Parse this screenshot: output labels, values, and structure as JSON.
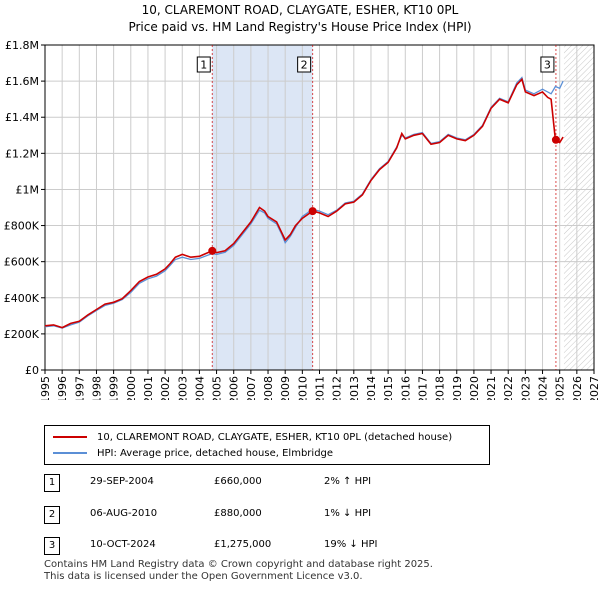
{
  "title": {
    "line1": "10, CLAREMONT ROAD, CLAYGATE, ESHER, KT10 0PL",
    "line2": "Price paid vs. HM Land Registry's House Price Index (HPI)"
  },
  "colors": {
    "property_line": "#cc0000",
    "hpi_line": "#5b8fd6",
    "shade": "#dce6f5",
    "grid": "#cccccc",
    "marker_border": "#cc0000"
  },
  "chart_data": {
    "type": "line",
    "x_range": [
      1995,
      2027
    ],
    "ylim": [
      0,
      1800000
    ],
    "y_ticks": [
      {
        "value": 0,
        "label": "£0"
      },
      {
        "value": 200000,
        "label": "£200K"
      },
      {
        "value": 400000,
        "label": "£400K"
      },
      {
        "value": 600000,
        "label": "£600K"
      },
      {
        "value": 800000,
        "label": "£800K"
      },
      {
        "value": 1000000,
        "label": "£1M"
      },
      {
        "value": 1200000,
        "label": "£1.2M"
      },
      {
        "value": 1400000,
        "label": "£1.4M"
      },
      {
        "value": 1600000,
        "label": "£1.6M"
      },
      {
        "value": 1800000,
        "label": "£1.8M"
      }
    ],
    "x_ticks": [
      "1995",
      "1996",
      "1997",
      "1998",
      "1999",
      "2000",
      "2001",
      "2002",
      "2003",
      "2004",
      "2005",
      "2006",
      "2007",
      "2008",
      "2009",
      "2010",
      "2011",
      "2012",
      "2013",
      "2014",
      "2015",
      "2016",
      "2017",
      "2018",
      "2019",
      "2020",
      "2021",
      "2022",
      "2023",
      "2024",
      "2025",
      "2026",
      "2027"
    ],
    "shaded_period": [
      2004.75,
      2010.6
    ],
    "future_hatch_start": 2025.25,
    "series": [
      {
        "name": "10, CLAREMONT ROAD, CLAYGATE, ESHER, KT10 0PL (detached house)",
        "points": [
          [
            1995,
            245000
          ],
          [
            1995.5,
            250000
          ],
          [
            1996,
            235000
          ],
          [
            1996.5,
            258000
          ],
          [
            1997,
            270000
          ],
          [
            1997.5,
            305000
          ],
          [
            1998,
            335000
          ],
          [
            1998.5,
            365000
          ],
          [
            1999,
            375000
          ],
          [
            1999.5,
            395000
          ],
          [
            2000,
            440000
          ],
          [
            2000.5,
            490000
          ],
          [
            2001,
            515000
          ],
          [
            2001.5,
            530000
          ],
          [
            2002,
            560000
          ],
          [
            2002.3,
            590000
          ],
          [
            2002.6,
            625000
          ],
          [
            2003,
            640000
          ],
          [
            2003.5,
            625000
          ],
          [
            2004,
            630000
          ],
          [
            2004.75,
            660000
          ],
          [
            2005,
            650000
          ],
          [
            2005.5,
            660000
          ],
          [
            2006,
            700000
          ],
          [
            2006.5,
            760000
          ],
          [
            2007,
            820000
          ],
          [
            2007.5,
            900000
          ],
          [
            2007.8,
            880000
          ],
          [
            2008,
            850000
          ],
          [
            2008.5,
            820000
          ],
          [
            2008.8,
            760000
          ],
          [
            2009,
            720000
          ],
          [
            2009.3,
            750000
          ],
          [
            2009.6,
            800000
          ],
          [
            2010,
            840000
          ],
          [
            2010.6,
            880000
          ],
          [
            2011,
            870000
          ],
          [
            2011.5,
            850000
          ],
          [
            2012,
            880000
          ],
          [
            2012.5,
            920000
          ],
          [
            2013,
            930000
          ],
          [
            2013.5,
            970000
          ],
          [
            2014,
            1050000
          ],
          [
            2014.5,
            1110000
          ],
          [
            2015,
            1150000
          ],
          [
            2015.5,
            1230000
          ],
          [
            2015.8,
            1310000
          ],
          [
            2016,
            1280000
          ],
          [
            2016.5,
            1300000
          ],
          [
            2017,
            1310000
          ],
          [
            2017.5,
            1250000
          ],
          [
            2018,
            1260000
          ],
          [
            2018.5,
            1300000
          ],
          [
            2019,
            1280000
          ],
          [
            2019.5,
            1270000
          ],
          [
            2020,
            1300000
          ],
          [
            2020.5,
            1350000
          ],
          [
            2021,
            1450000
          ],
          [
            2021.5,
            1500000
          ],
          [
            2022,
            1480000
          ],
          [
            2022.5,
            1580000
          ],
          [
            2022.8,
            1610000
          ],
          [
            2023,
            1540000
          ],
          [
            2023.5,
            1520000
          ],
          [
            2024,
            1540000
          ],
          [
            2024.3,
            1510000
          ],
          [
            2024.5,
            1500000
          ],
          [
            2024.75,
            1275000
          ],
          [
            2025,
            1260000
          ],
          [
            2025.2,
            1290000
          ]
        ]
      },
      {
        "name": "HPI: Average price, detached house, Elmbridge",
        "points": [
          [
            1995,
            240000
          ],
          [
            1995.5,
            245000
          ],
          [
            1996,
            232000
          ],
          [
            1996.5,
            250000
          ],
          [
            1997,
            265000
          ],
          [
            1997.5,
            300000
          ],
          [
            1998,
            330000
          ],
          [
            1998.5,
            358000
          ],
          [
            1999,
            370000
          ],
          [
            1999.5,
            390000
          ],
          [
            2000,
            430000
          ],
          [
            2000.5,
            480000
          ],
          [
            2001,
            505000
          ],
          [
            2001.5,
            520000
          ],
          [
            2002,
            550000
          ],
          [
            2002.3,
            580000
          ],
          [
            2002.6,
            612000
          ],
          [
            2003,
            625000
          ],
          [
            2003.5,
            612000
          ],
          [
            2004,
            618000
          ],
          [
            2004.75,
            645000
          ],
          [
            2005,
            640000
          ],
          [
            2005.5,
            652000
          ],
          [
            2006,
            690000
          ],
          [
            2006.5,
            750000
          ],
          [
            2007,
            810000
          ],
          [
            2007.5,
            885000
          ],
          [
            2007.8,
            870000
          ],
          [
            2008,
            840000
          ],
          [
            2008.5,
            810000
          ],
          [
            2008.8,
            750000
          ],
          [
            2009,
            705000
          ],
          [
            2009.3,
            740000
          ],
          [
            2009.6,
            790000
          ],
          [
            2010,
            850000
          ],
          [
            2010.6,
            890000
          ],
          [
            2011,
            880000
          ],
          [
            2011.5,
            860000
          ],
          [
            2012,
            885000
          ],
          [
            2012.5,
            925000
          ],
          [
            2013,
            935000
          ],
          [
            2013.5,
            975000
          ],
          [
            2014,
            1055000
          ],
          [
            2014.5,
            1115000
          ],
          [
            2015,
            1155000
          ],
          [
            2015.5,
            1235000
          ],
          [
            2015.8,
            1300000
          ],
          [
            2016,
            1285000
          ],
          [
            2016.5,
            1305000
          ],
          [
            2017,
            1315000
          ],
          [
            2017.5,
            1255000
          ],
          [
            2018,
            1265000
          ],
          [
            2018.5,
            1305000
          ],
          [
            2019,
            1285000
          ],
          [
            2019.5,
            1275000
          ],
          [
            2020,
            1305000
          ],
          [
            2020.5,
            1355000
          ],
          [
            2021,
            1455000
          ],
          [
            2021.5,
            1505000
          ],
          [
            2022,
            1485000
          ],
          [
            2022.5,
            1590000
          ],
          [
            2022.8,
            1620000
          ],
          [
            2023,
            1550000
          ],
          [
            2023.5,
            1530000
          ],
          [
            2024,
            1555000
          ],
          [
            2024.5,
            1530000
          ],
          [
            2024.75,
            1570000
          ],
          [
            2025,
            1560000
          ],
          [
            2025.2,
            1600000
          ]
        ]
      }
    ],
    "markers": [
      {
        "label": "1",
        "x": 2004.75,
        "y": 660000
      },
      {
        "label": "2",
        "x": 2010.6,
        "y": 880000
      },
      {
        "label": "3",
        "x": 2024.78,
        "y": 1275000
      }
    ]
  },
  "legend": {
    "property": "10, CLAREMONT ROAD, CLAYGATE, ESHER, KT10 0PL (detached house)",
    "hpi": "HPI: Average price, detached house, Elmbridge"
  },
  "transactions": [
    {
      "num": "1",
      "date": "29-SEP-2004",
      "price": "£660,000",
      "hpi": "2% ↑ HPI"
    },
    {
      "num": "2",
      "date": "06-AUG-2010",
      "price": "£880,000",
      "hpi": "1% ↓ HPI"
    },
    {
      "num": "3",
      "date": "10-OCT-2024",
      "price": "£1,275,000",
      "hpi": "19% ↓ HPI"
    }
  ],
  "footer": {
    "line1": "Contains HM Land Registry data © Crown copyright and database right 2025.",
    "line2": "This data is licensed under the Open Government Licence v3.0."
  }
}
